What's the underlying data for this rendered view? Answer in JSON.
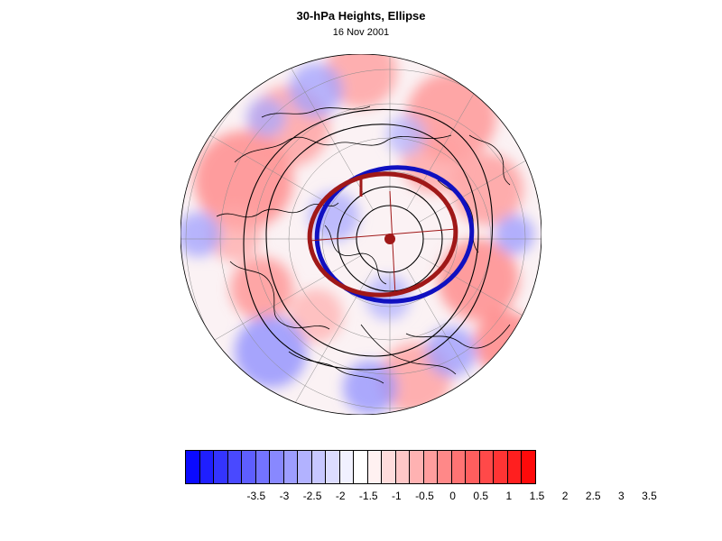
{
  "title": "30-hPa Heights, Ellipse",
  "subtitle": "16 Nov 2001",
  "colorbar": {
    "colors": [
      "#0a0aff",
      "#1f1fff",
      "#3434ff",
      "#4949ff",
      "#5e5eff",
      "#7373ff",
      "#8888ff",
      "#9d9dff",
      "#b2b2ff",
      "#c7c7ff",
      "#dcdcff",
      "#f1f1ff",
      "#ffffff",
      "#fff1f1",
      "#ffdcdc",
      "#ffc7c7",
      "#ffb2b2",
      "#ff9d9d",
      "#ff8888",
      "#ff7373",
      "#ff5e5e",
      "#ff4949",
      "#ff3434",
      "#ff1f1f",
      "#ff0a0a"
    ],
    "labels": [
      "-3.5",
      "-3",
      "-2.5",
      "-2",
      "-1.5",
      "-1",
      "-0.5",
      "0",
      "0.5",
      "1",
      "1.5",
      "2",
      "2.5",
      "3",
      "3.5"
    ]
  },
  "map": {
    "projection": "north polar stereographic",
    "ellipse_colors": [
      "#1010c0",
      "#a01818"
    ]
  }
}
